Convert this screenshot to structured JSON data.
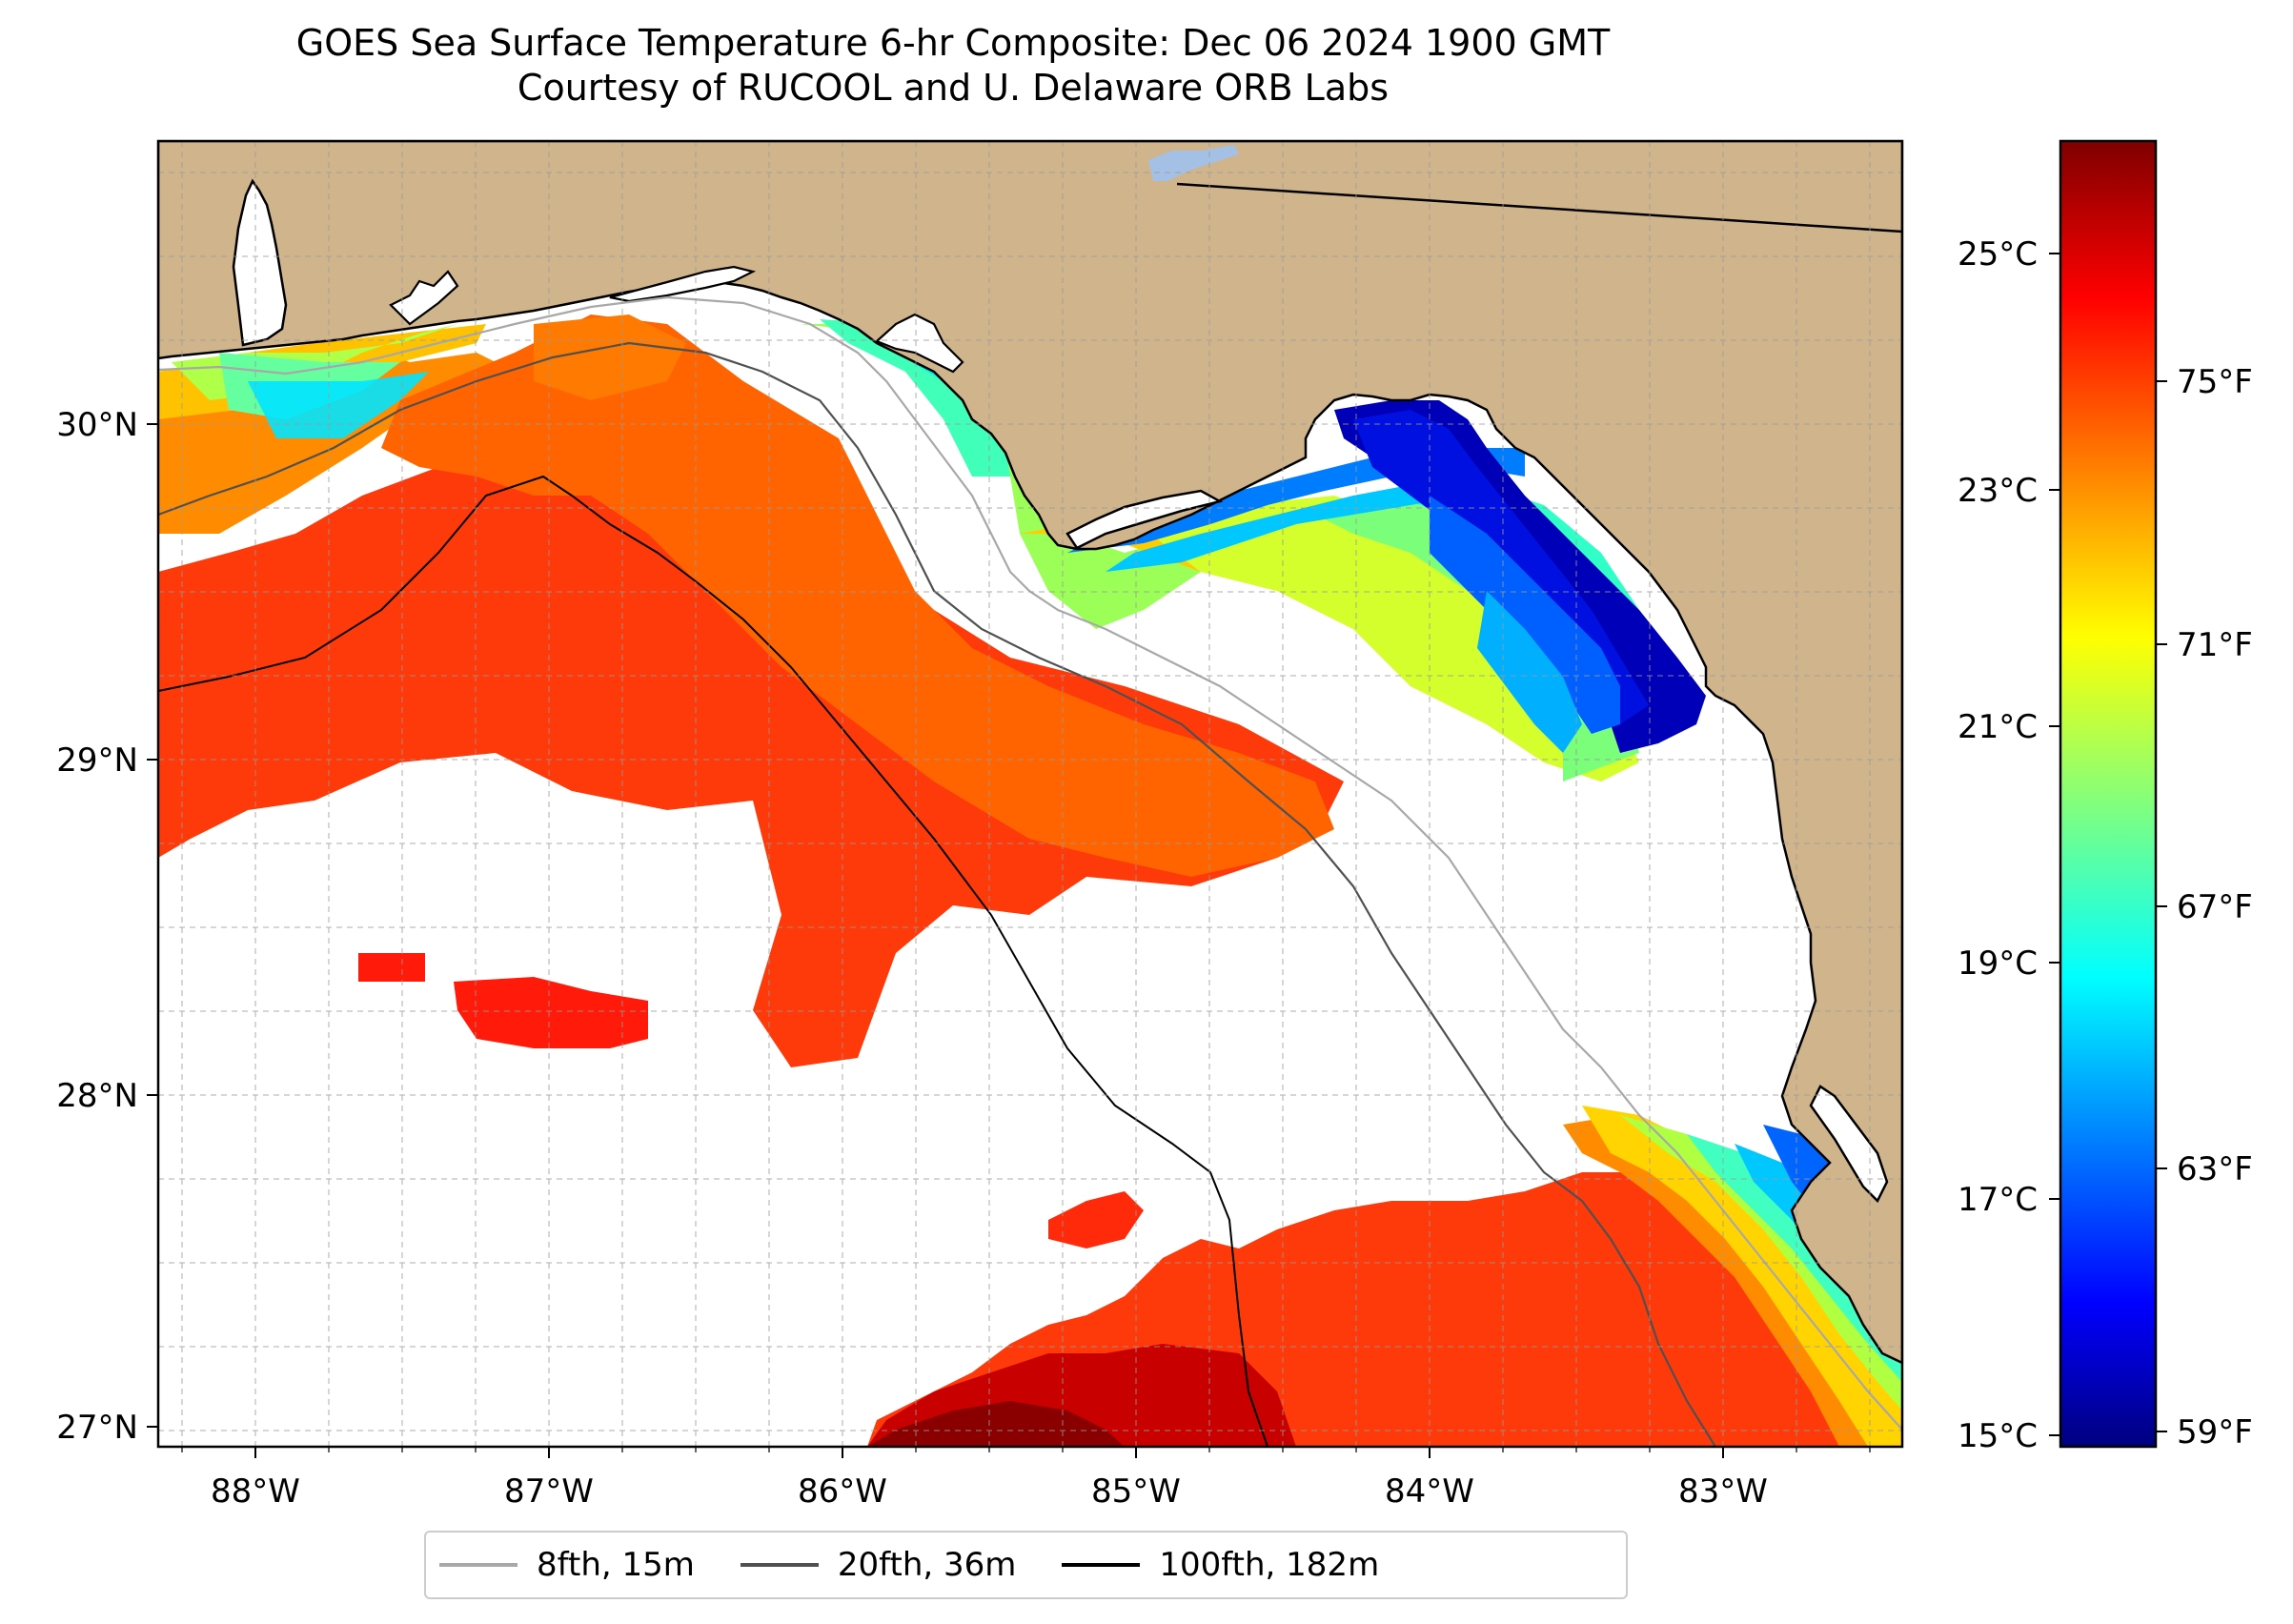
{
  "title": {
    "line1": "GOES Sea Surface Temperature 6-hr Composite: Dec 06 2024 1900 GMT",
    "line2": "Courtesy of RUCOOL and U. Delaware ORB Labs"
  },
  "map": {
    "lon_range": [
      -88.33,
      -82.4
    ],
    "lat_range": [
      26.94,
      30.86
    ],
    "lon_ticks": [
      "88°W",
      "87°W",
      "86°W",
      "85°W",
      "84°W",
      "83°W"
    ],
    "lat_ticks": [
      "27°N",
      "28°N",
      "29°N",
      "30°N"
    ],
    "land_color": "#d0b48c",
    "water_color": "#ffffff",
    "lake_color": "#a4c0e4",
    "gridlines": true
  },
  "colorbar": {
    "celsius_ticks": [
      "15°C",
      "17°C",
      "19°C",
      "21°C",
      "23°C",
      "25°C"
    ],
    "fahrenheit_ticks": [
      "59°F",
      "63°F",
      "67°F",
      "71°F",
      "75°F"
    ],
    "colormap": "jet",
    "range_c": [
      14.9,
      26.0
    ]
  },
  "legend": {
    "items": [
      {
        "label": "8fth, 15m",
        "color": "#a8a8a8"
      },
      {
        "label": "20fth, 36m",
        "color": "#505050"
      },
      {
        "label": "100fth, 182m",
        "color": "#000000"
      }
    ]
  }
}
